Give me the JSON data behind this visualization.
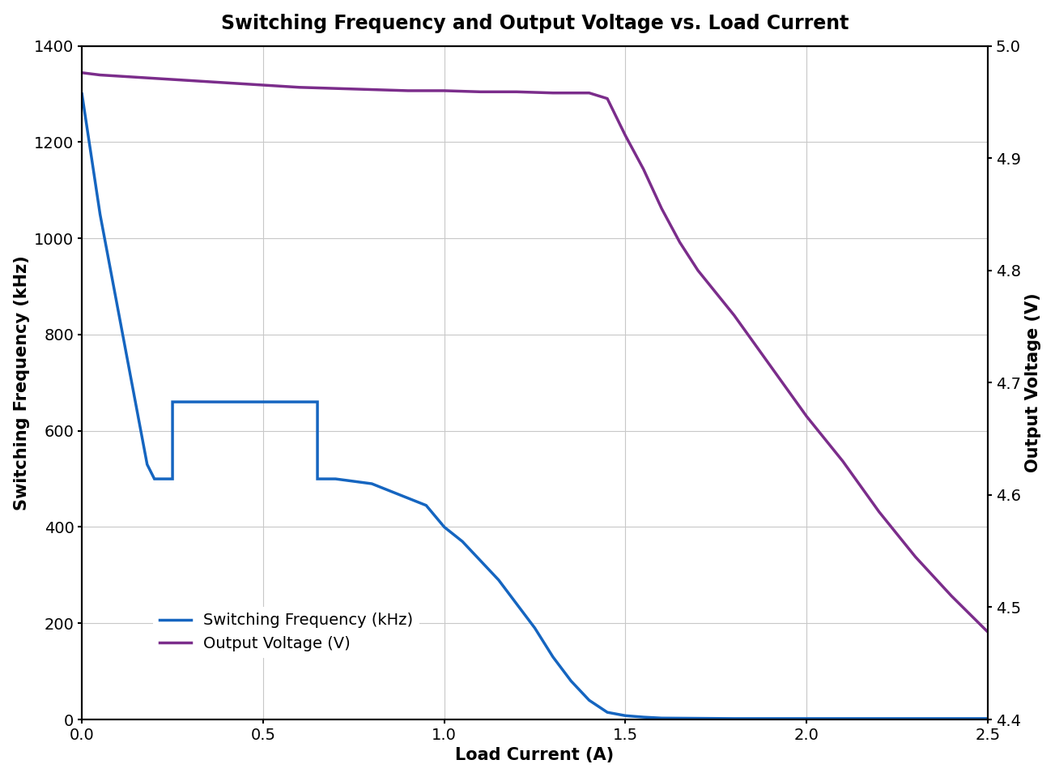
{
  "title": "Switching Frequency and Output Voltage vs. Load Current",
  "xlabel": "Load Current (A)",
  "ylabel_left": "Switching Frequency (kHz)",
  "ylabel_right": "Output Voltage (V)",
  "xlim": [
    0,
    2.5
  ],
  "ylim_left": [
    0,
    1400
  ],
  "ylim_right": [
    4.4,
    5.0
  ],
  "yticks_left": [
    0,
    200,
    400,
    600,
    800,
    1000,
    1200,
    1400
  ],
  "yticks_right": [
    4.4,
    4.5,
    4.6,
    4.7,
    4.8,
    4.9,
    5.0
  ],
  "xticks": [
    0,
    0.5,
    1.0,
    1.5,
    2.0,
    2.5
  ],
  "freq_x": [
    0.0,
    0.02,
    0.05,
    0.1,
    0.15,
    0.18,
    0.2,
    0.2,
    0.22,
    0.25,
    0.25,
    0.3,
    0.35,
    0.4,
    0.45,
    0.5,
    0.55,
    0.6,
    0.65,
    0.65,
    0.7,
    0.7,
    0.75,
    0.8,
    0.85,
    0.9,
    0.95,
    1.0,
    1.05,
    1.1,
    1.15,
    1.2,
    1.25,
    1.3,
    1.35,
    1.4,
    1.45,
    1.5,
    1.55,
    1.6,
    1.8,
    2.0,
    2.2,
    2.5
  ],
  "freq_y": [
    1300,
    1200,
    1050,
    850,
    650,
    530,
    500,
    500,
    500,
    500,
    660,
    660,
    660,
    660,
    660,
    660,
    660,
    660,
    660,
    500,
    500,
    500,
    495,
    490,
    475,
    460,
    445,
    400,
    370,
    330,
    290,
    240,
    190,
    130,
    80,
    40,
    15,
    8,
    5,
    3,
    2,
    2,
    2,
    2
  ],
  "volt_x": [
    0.0,
    0.05,
    0.1,
    0.2,
    0.3,
    0.4,
    0.5,
    0.6,
    0.7,
    0.8,
    0.9,
    1.0,
    1.1,
    1.2,
    1.3,
    1.4,
    1.45,
    1.5,
    1.55,
    1.6,
    1.65,
    1.7,
    1.8,
    1.9,
    2.0,
    2.1,
    2.2,
    2.3,
    2.4,
    2.5
  ],
  "volt_y": [
    4.976,
    4.974,
    4.973,
    4.971,
    4.969,
    4.967,
    4.965,
    4.963,
    4.962,
    4.961,
    4.96,
    4.96,
    4.959,
    4.959,
    4.958,
    4.958,
    4.953,
    4.92,
    4.89,
    4.855,
    4.825,
    4.8,
    4.76,
    4.715,
    4.67,
    4.63,
    4.585,
    4.545,
    4.51,
    4.478
  ],
  "freq_color": "#1565c0",
  "volt_color": "#7b2d8b",
  "legend_freq": "Switching Frequency (kHz)",
  "legend_volt": "Output Voltage (V)",
  "background_color": "#ffffff",
  "grid_color": "#c8c8c8",
  "title_fontsize": 17,
  "label_fontsize": 15,
  "tick_fontsize": 14,
  "legend_fontsize": 14,
  "line_width": 2.5
}
